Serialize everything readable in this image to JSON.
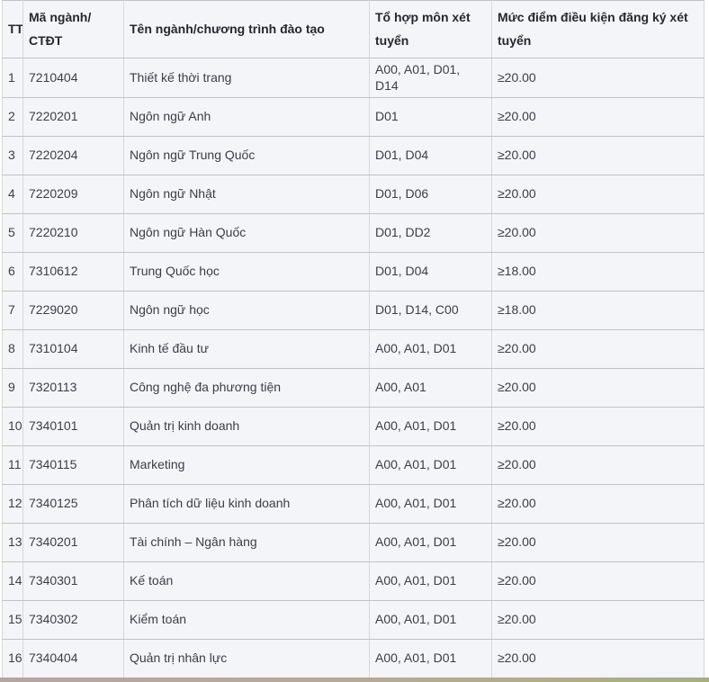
{
  "table": {
    "columns": [
      {
        "key": "tt",
        "label": "TT"
      },
      {
        "key": "code",
        "label": "Mã ngành/\nCTĐT"
      },
      {
        "key": "name",
        "label": "Tên ngành/chương trình đào tạo"
      },
      {
        "key": "combo",
        "label": "Tổ hợp môn xét tuyển"
      },
      {
        "key": "score",
        "label": "Mức điểm điều kiện đăng ký xét tuyển"
      }
    ],
    "rows": [
      {
        "tt": "1",
        "code": "7210404",
        "name": "Thiết kế thời trang",
        "combo": "A00, A01, D01, D14",
        "score": "≥20.00"
      },
      {
        "tt": "2",
        "code": "7220201",
        "name": "Ngôn ngữ Anh",
        "combo": "D01",
        "score": "≥20.00"
      },
      {
        "tt": "3",
        "code": "7220204",
        "name": "Ngôn ngữ Trung Quốc",
        "combo": "D01, D04",
        "score": "≥20.00"
      },
      {
        "tt": "4",
        "code": "7220209",
        "name": "Ngôn ngữ Nhật",
        "combo": "D01, D06",
        "score": "≥20.00"
      },
      {
        "tt": "5",
        "code": "7220210",
        "name": "Ngôn ngữ Hàn Quốc",
        "combo": "D01, DD2",
        "score": "≥20.00"
      },
      {
        "tt": "6",
        "code": "7310612",
        "name": "Trung Quốc học",
        "combo": "D01, D04",
        "score": "≥18.00"
      },
      {
        "tt": "7",
        "code": "7229020",
        "name": "Ngôn ngữ học",
        "combo": "D01, D14, C00",
        "score": "≥18.00"
      },
      {
        "tt": "8",
        "code": "7310104",
        "name": "Kinh tế đầu tư",
        "combo": "A00, A01, D01",
        "score": "≥20.00"
      },
      {
        "tt": "9",
        "code": "7320113",
        "name": "Công nghệ đa phương tiện",
        "combo": "A00, A01",
        "score": "≥20.00"
      },
      {
        "tt": "10",
        "code": "7340101",
        "name": "Quản trị kinh doanh",
        "combo": "A00, A01, D01",
        "score": "≥20.00"
      },
      {
        "tt": "11",
        "code": "7340115",
        "name": "Marketing",
        "combo": "A00, A01, D01",
        "score": "≥20.00"
      },
      {
        "tt": "12",
        "code": "7340125",
        "name": "Phân tích dữ liệu kinh doanh",
        "combo": "A00, A01, D01",
        "score": "≥20.00"
      },
      {
        "tt": "13",
        "code": "7340201",
        "name": "Tài chính – Ngân hàng",
        "combo": "A00, A01, D01",
        "score": "≥20.00"
      },
      {
        "tt": "14",
        "code": "7340301",
        "name": "Kế toán",
        "combo": "A00, A01, D01",
        "score": "≥20.00"
      },
      {
        "tt": "15",
        "code": "7340302",
        "name": "Kiểm toán",
        "combo": "A00, A01, D01",
        "score": "≥20.00"
      },
      {
        "tt": "16",
        "code": "7340404",
        "name": "Quản trị nhân lực",
        "combo": "A00, A01, D01",
        "score": "≥20.00"
      }
    ]
  },
  "colors": {
    "cell_background": "#f4f5f8",
    "border_horizontal": "#c2c2c2",
    "border_vertical": "#d8d8d8",
    "header_text": "#26282d",
    "body_text": "#3c3e44",
    "bottom_strip_left": "#b3a6a3",
    "bottom_strip_right": "#a9ae80"
  }
}
